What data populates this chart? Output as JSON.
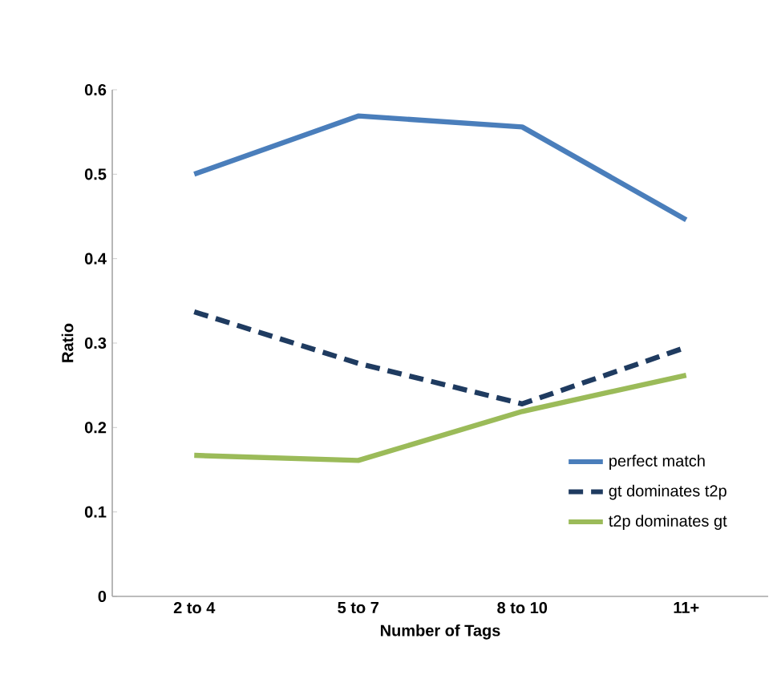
{
  "chart_data": {
    "type": "line",
    "xlabel": "Number of Tags",
    "ylabel": "Ratio",
    "categories": [
      "2 to 4",
      "5 to 7",
      "8 to 10",
      "11+"
    ],
    "series": [
      {
        "name": "perfect match",
        "color": "#4a7ebb",
        "values": [
          0.5,
          0.569,
          0.556,
          0.446
        ],
        "line_style": "solid"
      },
      {
        "name": "gt dominates  t2p",
        "color": "#1f3b60",
        "values": [
          0.337,
          0.276,
          0.228,
          0.295
        ],
        "line_style": "dashed"
      },
      {
        "name": "t2p dominates gt",
        "color": "#9bbb59",
        "values": [
          0.167,
          0.161,
          0.219,
          0.262
        ],
        "line_style": "solid"
      }
    ],
    "ylim": [
      0,
      0.6
    ],
    "yticks": [
      0,
      0.1,
      0.2,
      0.3,
      0.4,
      0.5,
      0.6
    ],
    "grid": false,
    "legend": "bottom right",
    "marker": "none"
  }
}
